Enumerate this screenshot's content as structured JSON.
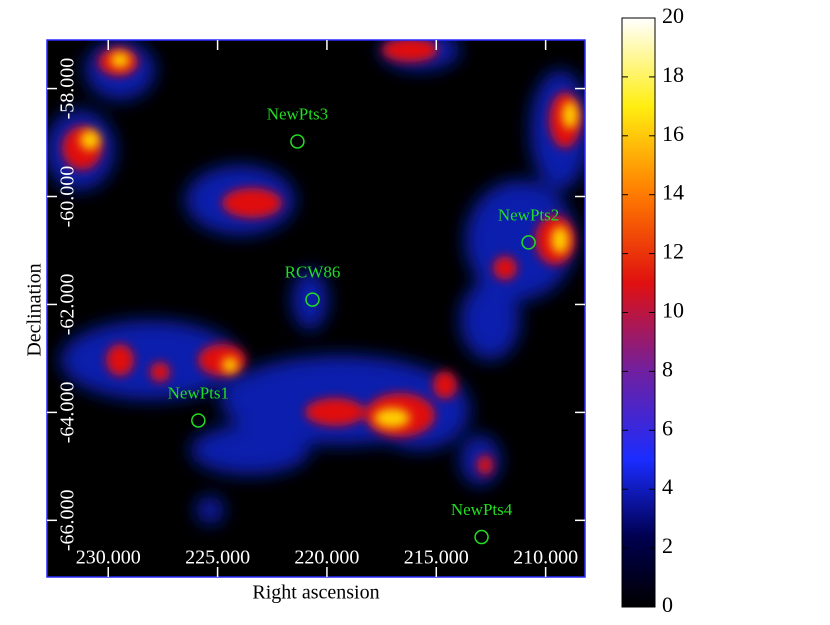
{
  "chart_data": {
    "type": "skymap",
    "xlabel": "Right ascension",
    "ylabel": "Declination",
    "xlim": [
      232.8,
      208.2
    ],
    "ylim": [
      -67.05,
      -57.1
    ],
    "xticks": [
      {
        "value": 230,
        "label": "230.000"
      },
      {
        "value": 225,
        "label": "225.000"
      },
      {
        "value": 220,
        "label": "220.000"
      },
      {
        "value": 215,
        "label": "215.000"
      },
      {
        "value": 210,
        "label": "210.000"
      }
    ],
    "yticks": [
      {
        "value": -58,
        "label": "-58.000"
      },
      {
        "value": -60,
        "label": "-60.000"
      },
      {
        "value": -62,
        "label": "-62.000"
      },
      {
        "value": -64,
        "label": "-64.000"
      },
      {
        "value": -66,
        "label": "-66.000"
      }
    ],
    "clim": [
      0,
      20
    ],
    "cticks": [
      0,
      2,
      4,
      6,
      8,
      10,
      12,
      14,
      16,
      18,
      20
    ],
    "sources": {
      "names": [
        "NewPts3",
        "RCW86",
        "NewPts2",
        "NewPts1",
        "NewPts4"
      ],
      "x": [
        221.35,
        220.66,
        210.78,
        225.88,
        212.93
      ],
      "y": [
        -58.98,
        -61.91,
        -60.85,
        -64.15,
        -66.31
      ],
      "color": "#22dd22"
    }
  }
}
